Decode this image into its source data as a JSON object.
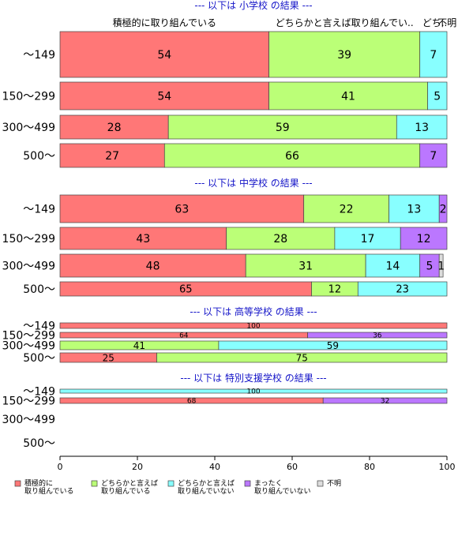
{
  "chart_data": {
    "type": "bar",
    "orientation": "horizontal",
    "stacked": true,
    "xlim": [
      0,
      100
    ],
    "x_ticks": [
      "0",
      "20",
      "40",
      "60",
      "80",
      "100"
    ],
    "grid": false,
    "legend_position": "bottom-left",
    "category_labels": [
      "積極的に取り組んでいる",
      "どちらかと言えば取り組んでい..",
      "どち..",
      "不明"
    ],
    "legend": [
      {
        "label": "積極的に\n取り組んでいる",
        "color": "#ff7777"
      },
      {
        "label": "どちらかと言えば\n取り組んでいる",
        "color": "#bbff77"
      },
      {
        "label": "どちらかと言えば\n取り組んでいない",
        "color": "#88ffff"
      },
      {
        "label": "まったく\n取り組んでいない",
        "color": "#bb77ff"
      },
      {
        "label": "不明",
        "color": "#dddddd"
      }
    ],
    "groups": [
      {
        "title": "--- 以下は 小学校 の結果 ---",
        "rows": [
          {
            "label": "～149",
            "values": [
              54,
              39,
              7,
              0,
              0
            ]
          },
          {
            "label": "150～299",
            "values": [
              54,
              41,
              5,
              0,
              0
            ]
          },
          {
            "label": "300～499",
            "values": [
              28,
              59,
              13,
              0,
              0
            ]
          },
          {
            "label": "500～",
            "values": [
              27,
              66,
              0,
              7,
              0
            ]
          }
        ]
      },
      {
        "title": "--- 以下は 中学校 の結果 ---",
        "rows": [
          {
            "label": "～149",
            "values": [
              63,
              22,
              13,
              2,
              0
            ]
          },
          {
            "label": "150～299",
            "values": [
              43,
              28,
              17,
              12,
              0
            ]
          },
          {
            "label": "300～499",
            "values": [
              48,
              31,
              14,
              5,
              1
            ]
          },
          {
            "label": "500～",
            "values": [
              65,
              12,
              23,
              0,
              0
            ]
          }
        ]
      },
      {
        "title": "--- 以下は 高等学校 の結果 ---",
        "rows": [
          {
            "label": "～149",
            "values": [
              100,
              0,
              0,
              0,
              0
            ]
          },
          {
            "label": "150～299",
            "values": [
              64,
              0,
              0,
              36,
              0
            ]
          },
          {
            "label": "300～499",
            "values": [
              0,
              41,
              59,
              0,
              0
            ]
          },
          {
            "label": "500～",
            "values": [
              25,
              75,
              0,
              0,
              0
            ]
          }
        ]
      },
      {
        "title": "--- 以下は 特別支援学校 の結果 ---",
        "rows": [
          {
            "label": "～149",
            "values": [
              0,
              0,
              100,
              0,
              0
            ]
          },
          {
            "label": "150～299",
            "values": [
              68,
              0,
              0,
              32,
              0
            ]
          },
          {
            "label": "300～499",
            "values": []
          },
          {
            "label": "500～",
            "values": []
          }
        ]
      }
    ]
  }
}
